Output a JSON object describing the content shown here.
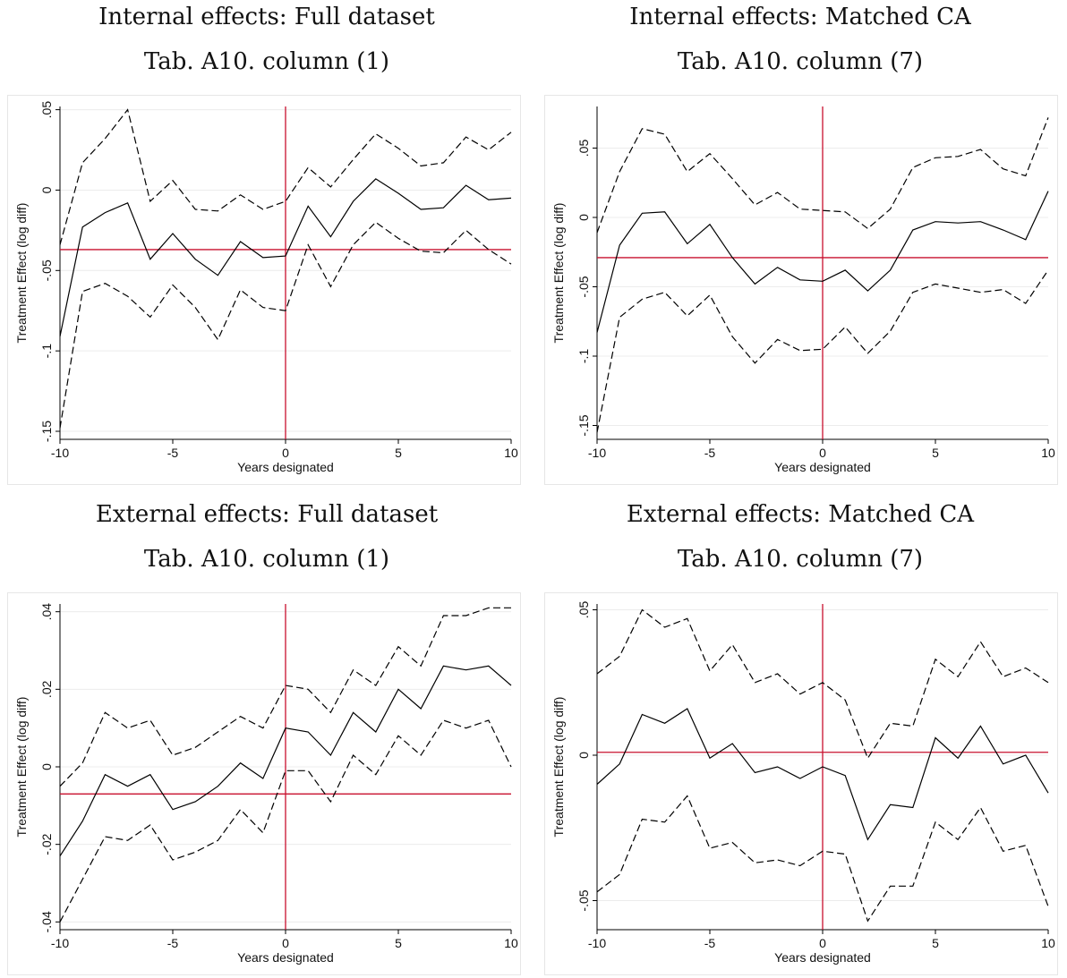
{
  "chart_data": [
    {
      "type": "line",
      "title": "Internal effects: Full dataset",
      "subtitle": "Tab. A10. column (1)",
      "xlabel": "Years designated",
      "ylabel": "Treatment Effect (log diff)",
      "x": [
        -10,
        -9,
        -8,
        -7,
        -6,
        -5,
        -4,
        -3,
        -2,
        -1,
        0,
        1,
        2,
        3,
        4,
        5,
        6,
        7,
        8,
        9,
        10
      ],
      "xlim": [
        -10,
        10
      ],
      "ylim": [
        -0.155,
        0.052
      ],
      "xticks": [
        "-10",
        "-5",
        "0",
        "5",
        "10"
      ],
      "yticks": [
        {
          "value": -0.15,
          "label": "-.15"
        },
        {
          "value": -0.1,
          "label": "-.1"
        },
        {
          "value": -0.05,
          "label": "-.05"
        },
        {
          "value": 0,
          "label": "0"
        },
        {
          "value": 0.05,
          "label": ".05"
        }
      ],
      "hline": -0.037,
      "vline": 0,
      "grid": true,
      "series": [
        {
          "style": "upper-ci",
          "values": [
            -0.034,
            0.017,
            0.032,
            0.05,
            -0.007,
            0.006,
            -0.012,
            -0.013,
            -0.003,
            -0.012,
            -0.007,
            0.014,
            0.002,
            0.019,
            0.035,
            0.026,
            0.015,
            0.017,
            0.033,
            0.025,
            0.036
          ]
        },
        {
          "style": "estimate",
          "values": [
            -0.091,
            -0.023,
            -0.014,
            -0.008,
            -0.043,
            -0.027,
            -0.043,
            -0.053,
            -0.032,
            -0.042,
            -0.041,
            -0.01,
            -0.029,
            -0.007,
            0.007,
            -0.002,
            -0.012,
            -0.011,
            0.003,
            -0.006,
            -0.005
          ]
        },
        {
          "style": "lower-ci",
          "values": [
            -0.148,
            -0.063,
            -0.058,
            -0.066,
            -0.079,
            -0.059,
            -0.073,
            -0.093,
            -0.062,
            -0.073,
            -0.075,
            -0.034,
            -0.06,
            -0.034,
            -0.02,
            -0.03,
            -0.038,
            -0.039,
            -0.025,
            -0.037,
            -0.046
          ]
        }
      ]
    },
    {
      "type": "line",
      "title": "Internal effects: Matched CA",
      "subtitle": "Tab. A10. column (7)",
      "xlabel": "Years designated",
      "ylabel": "Treatment Effect (log diff)",
      "x": [
        -10,
        -9,
        -8,
        -7,
        -6,
        -5,
        -4,
        -3,
        -2,
        -1,
        0,
        1,
        2,
        3,
        4,
        5,
        6,
        7,
        8,
        9,
        10
      ],
      "xlim": [
        -10,
        10
      ],
      "ylim": [
        -0.16,
        0.08
      ],
      "xticks": [
        "-10",
        "-5",
        "0",
        "5",
        "10"
      ],
      "yticks": [
        {
          "value": -0.15,
          "label": "-.15"
        },
        {
          "value": -0.1,
          "label": "-.1"
        },
        {
          "value": -0.05,
          "label": "-.05"
        },
        {
          "value": 0,
          "label": "0"
        },
        {
          "value": 0.05,
          "label": ".05"
        }
      ],
      "hline": -0.029,
      "vline": 0,
      "grid": true,
      "series": [
        {
          "style": "upper-ci",
          "values": [
            -0.011,
            0.033,
            0.064,
            0.06,
            0.033,
            0.046,
            0.028,
            0.009,
            0.018,
            0.006,
            0.005,
            0.004,
            -0.008,
            0.006,
            0.036,
            0.043,
            0.044,
            0.049,
            0.035,
            0.03,
            0.072
          ]
        },
        {
          "style": "estimate",
          "values": [
            -0.083,
            -0.02,
            0.003,
            0.004,
            -0.019,
            -0.005,
            -0.029,
            -0.048,
            -0.036,
            -0.045,
            -0.046,
            -0.038,
            -0.053,
            -0.038,
            -0.009,
            -0.003,
            -0.004,
            -0.003,
            -0.009,
            -0.016,
            0.019
          ]
        },
        {
          "style": "lower-ci",
          "values": [
            -0.155,
            -0.072,
            -0.059,
            -0.054,
            -0.071,
            -0.056,
            -0.086,
            -0.105,
            -0.088,
            -0.096,
            -0.095,
            -0.079,
            -0.098,
            -0.082,
            -0.054,
            -0.048,
            -0.051,
            -0.054,
            -0.052,
            -0.062,
            -0.038
          ]
        }
      ]
    },
    {
      "type": "line",
      "title": "External effects: Full dataset",
      "subtitle": "Tab. A10. column (1)",
      "xlabel": "Years designated",
      "ylabel": "Treatment Effect (log diff)",
      "x": [
        -10,
        -9,
        -8,
        -7,
        -6,
        -5,
        -4,
        -3,
        -2,
        -1,
        0,
        1,
        2,
        3,
        4,
        5,
        6,
        7,
        8,
        9,
        10
      ],
      "xlim": [
        -10,
        10
      ],
      "ylim": [
        -0.042,
        0.042
      ],
      "xticks": [
        "-10",
        "-5",
        "0",
        "5",
        "10"
      ],
      "yticks": [
        {
          "value": -0.04,
          "label": "-.04"
        },
        {
          "value": -0.02,
          "label": "-.02"
        },
        {
          "value": 0,
          "label": "0"
        },
        {
          "value": 0.02,
          "label": ".02"
        },
        {
          "value": 0.04,
          "label": ".04"
        }
      ],
      "hline": -0.007,
      "vline": 0,
      "grid": true,
      "series": [
        {
          "style": "upper-ci",
          "values": [
            -0.005,
            0.001,
            0.014,
            0.01,
            0.012,
            0.003,
            0.005,
            0.009,
            0.013,
            0.01,
            0.021,
            0.02,
            0.014,
            0.025,
            0.021,
            0.031,
            0.026,
            0.039,
            0.039,
            0.041,
            0.041
          ]
        },
        {
          "style": "estimate",
          "values": [
            -0.023,
            -0.014,
            -0.002,
            -0.005,
            -0.002,
            -0.011,
            -0.009,
            -0.005,
            0.001,
            -0.003,
            0.01,
            0.009,
            0.003,
            0.014,
            0.009,
            0.02,
            0.015,
            0.026,
            0.025,
            0.026,
            0.021
          ]
        },
        {
          "style": "lower-ci",
          "values": [
            -0.04,
            -0.029,
            -0.018,
            -0.019,
            -0.015,
            -0.024,
            -0.022,
            -0.019,
            -0.011,
            -0.017,
            -0.001,
            -0.001,
            -0.009,
            0.003,
            -0.002,
            0.008,
            0.003,
            0.012,
            0.01,
            0.012,
            0.0
          ]
        }
      ]
    },
    {
      "type": "line",
      "title": "External effects: Matched CA",
      "subtitle": "Tab. A10. column (7)",
      "xlabel": "Years designated",
      "ylabel": "Treatment Effect (log diff)",
      "x": [
        -10,
        -9,
        -8,
        -7,
        -6,
        -5,
        -4,
        -3,
        -2,
        -1,
        0,
        1,
        2,
        3,
        4,
        5,
        6,
        7,
        8,
        9,
        10
      ],
      "xlim": [
        -10,
        10
      ],
      "ylim": [
        -0.06,
        0.052
      ],
      "xticks": [
        "-10",
        "-5",
        "0",
        "5",
        "10"
      ],
      "yticks": [
        {
          "value": -0.05,
          "label": "-.05"
        },
        {
          "value": 0,
          "label": "0"
        },
        {
          "value": 0.05,
          "label": ".05"
        }
      ],
      "hline": 0.001,
      "vline": 0,
      "grid": true,
      "series": [
        {
          "style": "upper-ci",
          "values": [
            0.028,
            0.034,
            0.05,
            0.044,
            0.047,
            0.029,
            0.038,
            0.025,
            0.028,
            0.021,
            0.025,
            0.019,
            -0.001,
            0.011,
            0.01,
            0.033,
            0.027,
            0.039,
            0.027,
            0.03,
            0.025
          ]
        },
        {
          "style": "estimate",
          "values": [
            -0.01,
            -0.003,
            0.014,
            0.011,
            0.016,
            -0.001,
            0.004,
            -0.006,
            -0.004,
            -0.008,
            -0.004,
            -0.007,
            -0.029,
            -0.017,
            -0.018,
            0.006,
            -0.001,
            0.01,
            -0.003,
            0.0,
            -0.013
          ]
        },
        {
          "style": "lower-ci",
          "values": [
            -0.047,
            -0.041,
            -0.022,
            -0.023,
            -0.014,
            -0.032,
            -0.03,
            -0.037,
            -0.036,
            -0.038,
            -0.033,
            -0.034,
            -0.057,
            -0.045,
            -0.045,
            -0.023,
            -0.029,
            -0.018,
            -0.033,
            -0.031,
            -0.052
          ]
        }
      ]
    }
  ]
}
